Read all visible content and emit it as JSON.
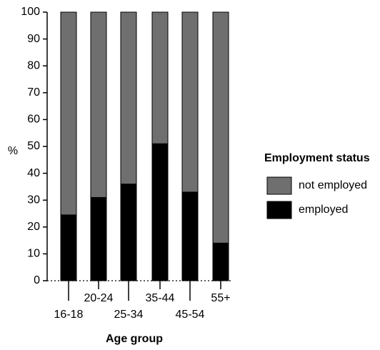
{
  "chart_data": {
    "type": "bar",
    "stacked": true,
    "orientation": "vertical",
    "xlabel": "Age group",
    "ylabel": "%",
    "ylim": [
      0,
      100
    ],
    "yticks": [
      0,
      10,
      20,
      30,
      40,
      50,
      60,
      70,
      80,
      90,
      100
    ],
    "categories": [
      "16-18",
      "20-24",
      "25-34",
      "35-44",
      "45-54",
      "55+"
    ],
    "series": [
      {
        "name": "employed",
        "color": "#000000",
        "values": [
          24.5,
          31,
          36,
          51,
          33,
          14
        ]
      },
      {
        "name": "not employed",
        "color": "#6f6f6f",
        "values": [
          75.5,
          69,
          64,
          49,
          67,
          86
        ]
      }
    ],
    "legend": {
      "title": "Employment status",
      "position": "right",
      "entries": [
        "not employed",
        "employed"
      ]
    },
    "grid": false
  }
}
